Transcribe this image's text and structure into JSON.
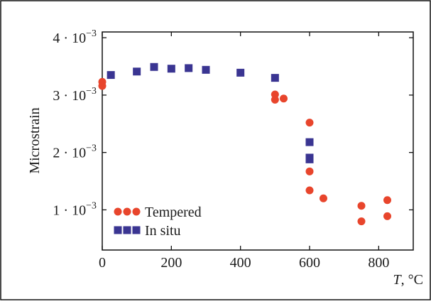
{
  "chart_data": {
    "type": "scatter",
    "ylabel": "Microstrain",
    "xlabel_var": "T",
    "xlabel_unit": ", °C",
    "xlim": [
      0,
      900
    ],
    "ylim": [
      0.0003,
      0.0041
    ],
    "x_ticks": [
      0,
      200,
      400,
      600,
      800
    ],
    "y_ticks": [
      {
        "value": 0.001,
        "mantissa": "1",
        "exponent": "−3"
      },
      {
        "value": 0.002,
        "mantissa": "2",
        "exponent": "−3"
      },
      {
        "value": 0.003,
        "mantissa": "3",
        "exponent": "−3"
      },
      {
        "value": 0.004,
        "mantissa": "4",
        "exponent": "−3"
      }
    ],
    "grid": false,
    "legend_position": "bottom-left",
    "series": [
      {
        "name": "Tempered",
        "marker": "circle",
        "color": "#e8452c",
        "points": [
          [
            0,
            0.00323
          ],
          [
            0,
            0.00316
          ],
          [
            500,
            0.00301
          ],
          [
            500,
            0.00292
          ],
          [
            525,
            0.00294
          ],
          [
            600,
            0.00252
          ],
          [
            600,
            0.00167
          ],
          [
            600,
            0.00134
          ],
          [
            640,
            0.0012
          ],
          [
            750,
            0.00107
          ],
          [
            750,
            0.0008
          ],
          [
            825,
            0.00117
          ],
          [
            825,
            0.00089
          ]
        ]
      },
      {
        "name": "In situ",
        "marker": "square",
        "color": "#3a3592",
        "points": [
          [
            25,
            0.00335
          ],
          [
            100,
            0.00341
          ],
          [
            150,
            0.00349
          ],
          [
            200,
            0.00346
          ],
          [
            250,
            0.00347
          ],
          [
            300,
            0.00344
          ],
          [
            400,
            0.00339
          ],
          [
            500,
            0.0033
          ],
          [
            600,
            0.00218
          ],
          [
            600,
            0.00191
          ],
          [
            600,
            0.00188
          ]
        ]
      }
    ]
  }
}
